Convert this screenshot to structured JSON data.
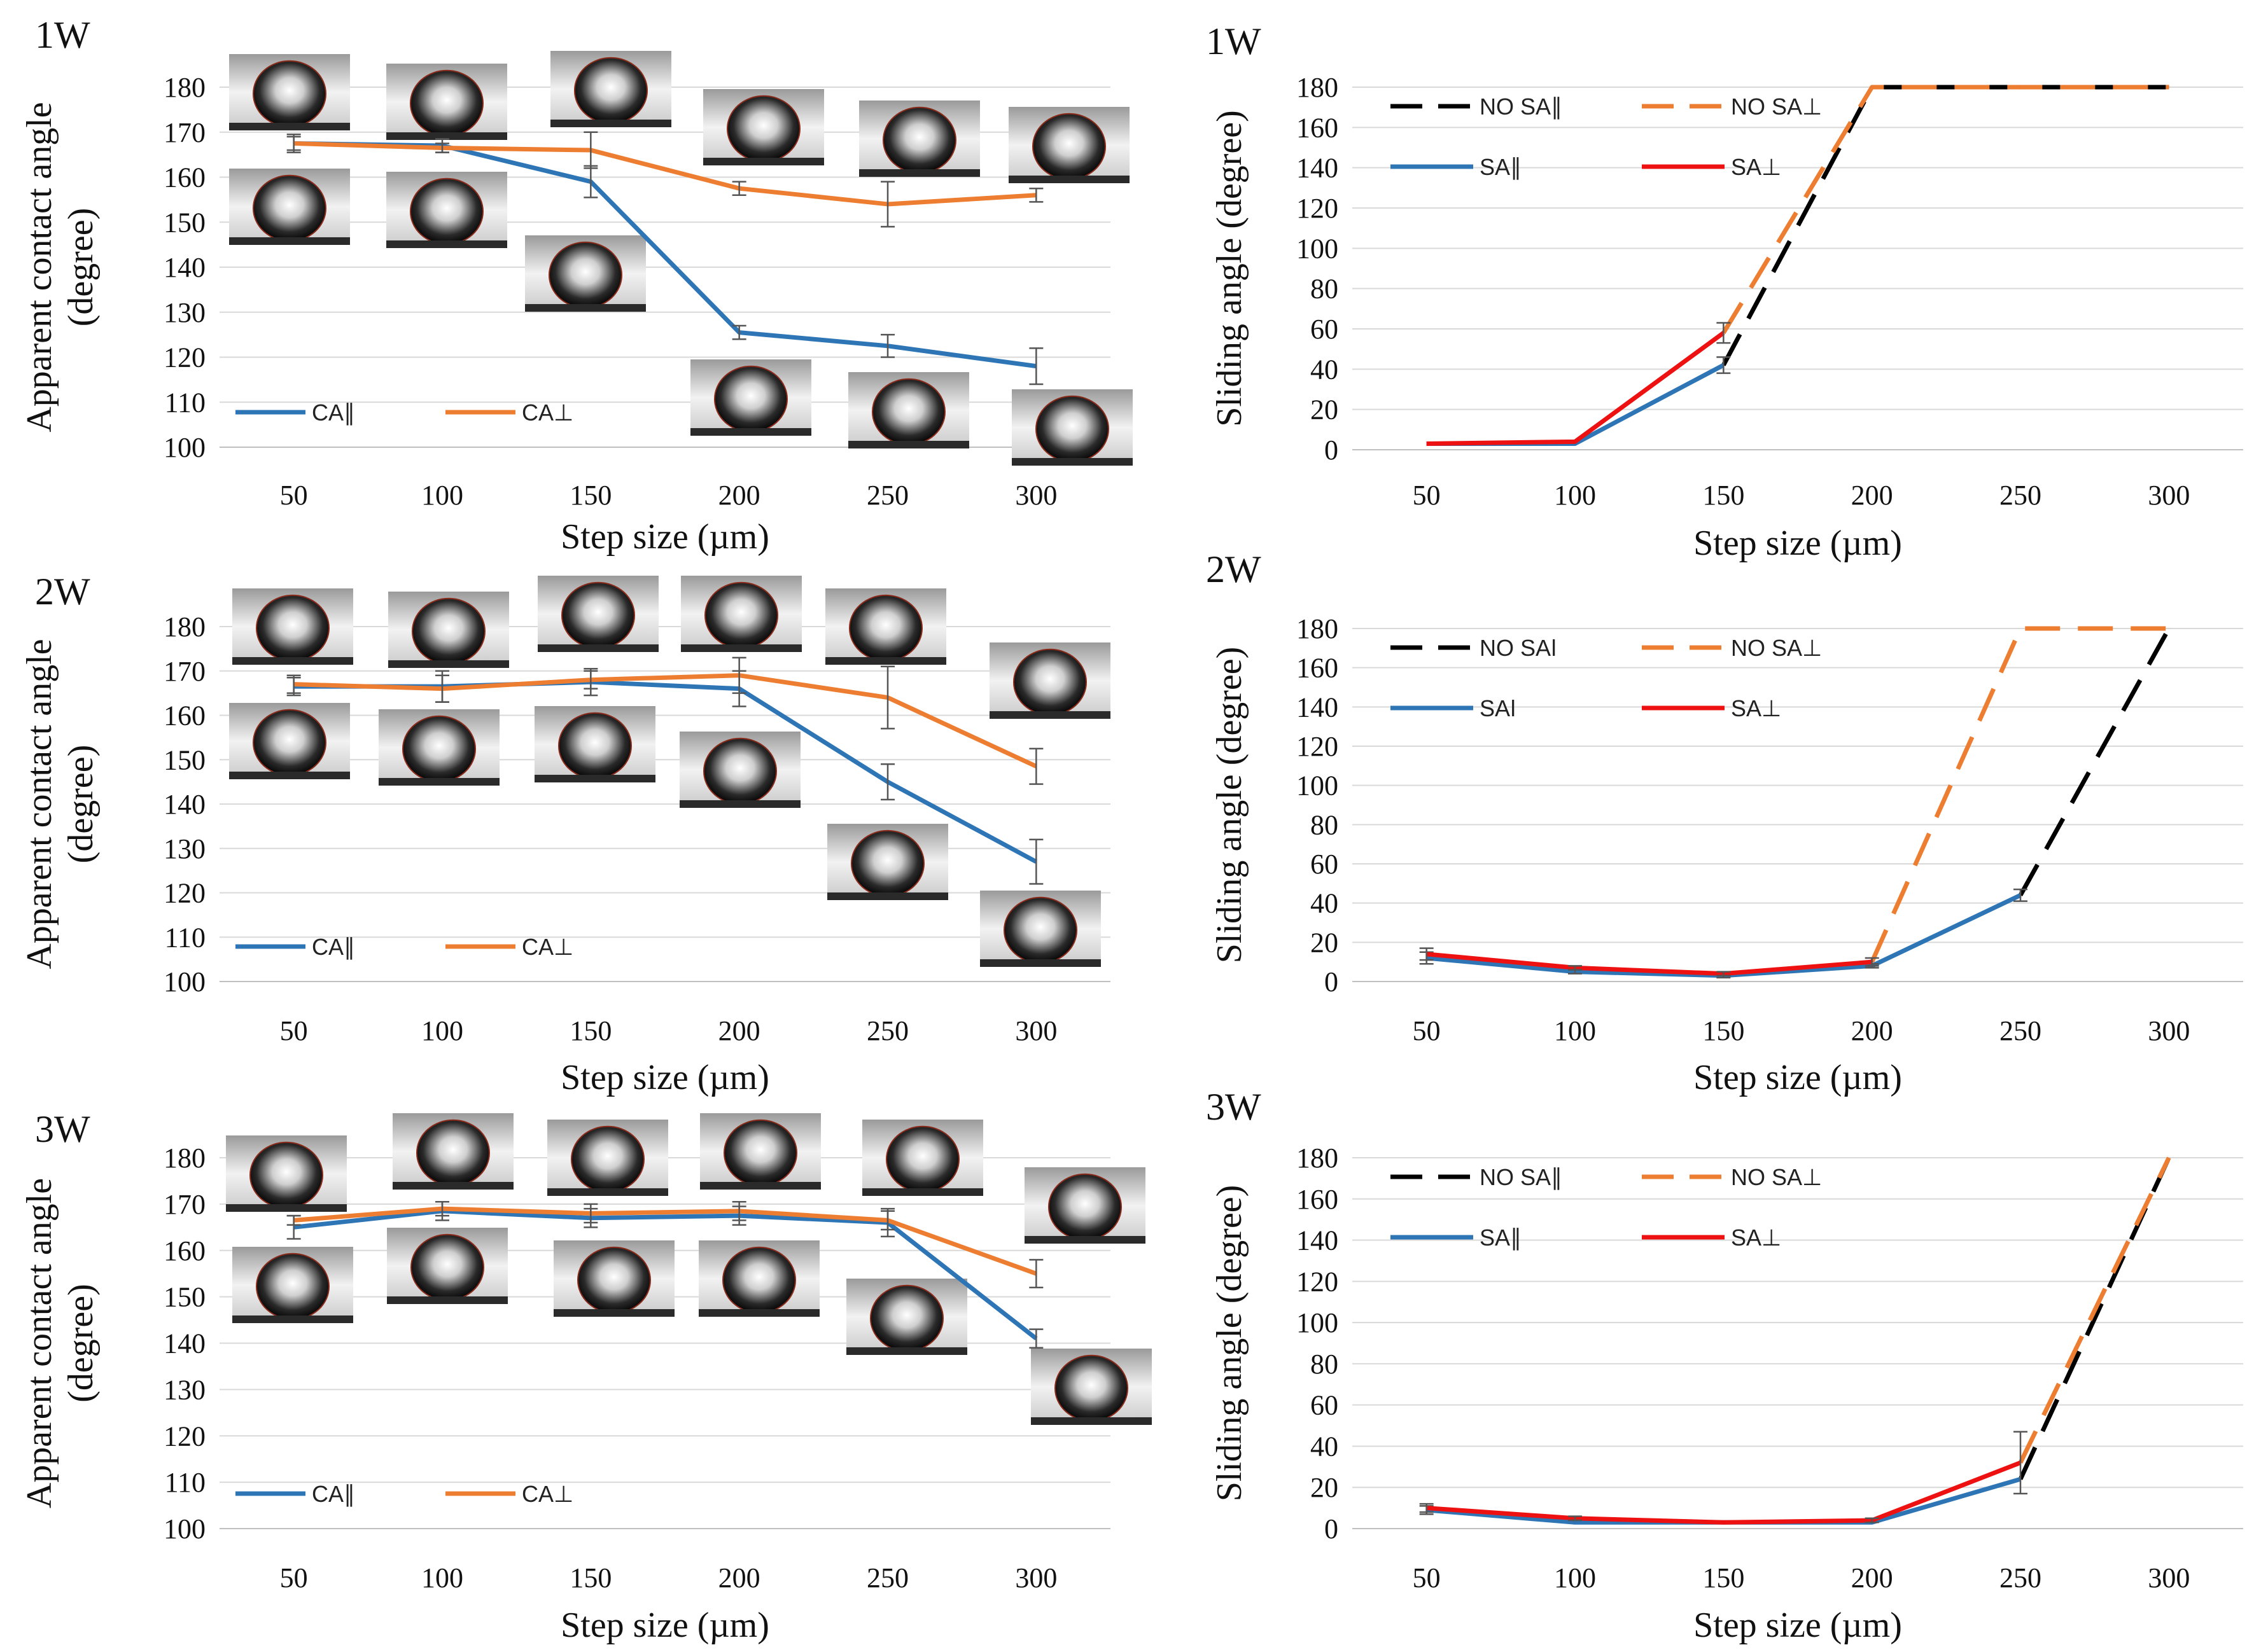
{
  "colors": {
    "blue": "#2e75b6",
    "orange": "#ed7d31",
    "red": "#ee1111",
    "black": "#000000",
    "grid": "#d9d9d9",
    "errbar": "#555555"
  },
  "chart_data": [
    {
      "id": "ca-1w",
      "type": "line",
      "panel_label": "1W",
      "xlabel": "Step size (µm)",
      "ylabel_line1": "Apparent contact angle",
      "ylabel_line2": "(degree)",
      "categories": [
        "50",
        "100",
        "150",
        "200",
        "250",
        "300"
      ],
      "ylim": [
        100,
        180
      ],
      "yticks": [
        100,
        110,
        120,
        130,
        140,
        150,
        160,
        170,
        180
      ],
      "legend": "bottom-left",
      "series": [
        {
          "name": "CA∥",
          "color": "blue",
          "values": [
            167.5,
            167,
            159,
            125.5,
            122.5,
            118
          ],
          "errors": [
            2,
            1.5,
            3.5,
            1.5,
            2.5,
            4
          ]
        },
        {
          "name": "CA⊥",
          "color": "orange",
          "values": [
            167.5,
            166.5,
            166,
            157.5,
            154,
            156
          ],
          "errors": [
            1.5,
            1,
            4,
            1.5,
            5,
            1.5
          ]
        }
      ],
      "droplet_images": "droplet contact-angle photographs per step size"
    },
    {
      "id": "sa-1w",
      "type": "line",
      "panel_label": "1W",
      "xlabel": "Step size (µm)",
      "ylabel": "Sliding angle (degree)",
      "categories": [
        "50",
        "100",
        "150",
        "200",
        "250",
        "300"
      ],
      "ylim": [
        0,
        180
      ],
      "yticks": [
        0,
        20,
        40,
        60,
        80,
        100,
        120,
        140,
        160,
        180
      ],
      "legend": "top",
      "series": [
        {
          "name": "NO SA∥",
          "color": "black",
          "dashed": true,
          "values": [
            null,
            null,
            42,
            180,
            180,
            180
          ]
        },
        {
          "name": "NO SA⊥",
          "color": "orange",
          "dashed": true,
          "values": [
            null,
            null,
            58,
            180,
            180,
            180
          ]
        },
        {
          "name": "SA∥",
          "color": "blue",
          "values": [
            3,
            3,
            42,
            null,
            null,
            null
          ],
          "errors": [
            0,
            0,
            4,
            null,
            null,
            null
          ]
        },
        {
          "name": "SA⊥",
          "color": "red",
          "values": [
            3,
            4,
            58,
            null,
            null,
            null
          ],
          "errors": [
            0,
            0,
            5,
            null,
            null,
            null
          ]
        }
      ]
    },
    {
      "id": "ca-2w",
      "type": "line",
      "panel_label": "2W",
      "xlabel": "Step size (µm)",
      "ylabel_line1": "Apparent contact angle",
      "ylabel_line2": "(degree)",
      "categories": [
        "50",
        "100",
        "150",
        "200",
        "250",
        "300"
      ],
      "ylim": [
        100,
        180
      ],
      "yticks": [
        100,
        110,
        120,
        130,
        140,
        150,
        160,
        170,
        180
      ],
      "legend": "bottom-left",
      "series": [
        {
          "name": "CA∥",
          "color": "blue",
          "values": [
            166.5,
            166.5,
            167.5,
            166,
            145,
            127
          ],
          "errors": [
            2,
            3.5,
            3,
            4,
            4,
            5
          ]
        },
        {
          "name": "CA⊥",
          "color": "orange",
          "values": [
            167,
            166,
            168,
            169,
            164,
            148.5
          ],
          "errors": [
            2,
            3,
            2,
            4,
            7,
            4
          ]
        }
      ],
      "droplet_images": "droplet contact-angle photographs per step size"
    },
    {
      "id": "sa-2w",
      "type": "line",
      "panel_label": "2W",
      "xlabel": "Step size (µm)",
      "ylabel": "Sliding angle (degree)",
      "categories": [
        "50",
        "100",
        "150",
        "200",
        "250",
        "300"
      ],
      "ylim": [
        0,
        180
      ],
      "yticks": [
        0,
        20,
        40,
        60,
        80,
        100,
        120,
        140,
        160,
        180
      ],
      "legend": "top",
      "series": [
        {
          "name": "NO SAǀ",
          "color": "black",
          "dashed": true,
          "values": [
            null,
            null,
            null,
            null,
            44,
            180
          ]
        },
        {
          "name": "NO SA⊥",
          "color": "orange",
          "dashed": true,
          "values": [
            null,
            null,
            null,
            10,
            180,
            180
          ]
        },
        {
          "name": "SAǀ",
          "color": "blue",
          "values": [
            12,
            5,
            3,
            8,
            44,
            null
          ],
          "errors": [
            3,
            1,
            1,
            1,
            3,
            null
          ]
        },
        {
          "name": "SA⊥",
          "color": "red",
          "values": [
            14,
            7,
            4,
            10,
            null,
            null
          ],
          "errors": [
            3,
            1,
            1,
            2,
            null,
            null
          ]
        }
      ]
    },
    {
      "id": "ca-3w",
      "type": "line",
      "panel_label": "3W",
      "xlabel": "Step size (µm)",
      "ylabel_line1": "Apparent contact angle",
      "ylabel_line2": "(degree)",
      "categories": [
        "50",
        "100",
        "150",
        "200",
        "250",
        "300"
      ],
      "ylim": [
        100,
        180
      ],
      "yticks": [
        100,
        110,
        120,
        130,
        140,
        150,
        160,
        170,
        180
      ],
      "legend": "bottom-left",
      "series": [
        {
          "name": "CA∥",
          "color": "blue",
          "values": [
            165,
            168.5,
            167,
            167.5,
            166,
            141
          ],
          "errors": [
            2.5,
            2,
            2,
            2,
            3,
            2
          ]
        },
        {
          "name": "CA⊥",
          "color": "orange",
          "values": [
            166.5,
            169,
            168,
            168.5,
            166.5,
            155
          ],
          "errors": [
            1,
            1.5,
            2,
            2,
            2,
            3
          ]
        }
      ],
      "droplet_images": "droplet contact-angle photographs per step size"
    },
    {
      "id": "sa-3w",
      "type": "line",
      "panel_label": "3W",
      "xlabel": "Step size (µm)",
      "ylabel": "Sliding angle (degree)",
      "categories": [
        "50",
        "100",
        "150",
        "200",
        "250",
        "300"
      ],
      "ylim": [
        0,
        180
      ],
      "yticks": [
        0,
        20,
        40,
        60,
        80,
        100,
        120,
        140,
        160,
        180
      ],
      "legend": "top",
      "series": [
        {
          "name": "NO SA∥",
          "color": "black",
          "dashed": true,
          "values": [
            null,
            null,
            null,
            null,
            24,
            180
          ]
        },
        {
          "name": "NO SA⊥",
          "color": "orange",
          "dashed": true,
          "values": [
            null,
            null,
            null,
            null,
            32,
            180
          ]
        },
        {
          "name": "SA∥",
          "color": "blue",
          "values": [
            9,
            3,
            3,
            3,
            24,
            null
          ],
          "errors": [
            2,
            0,
            0,
            0,
            0,
            null
          ]
        },
        {
          "name": "SA⊥",
          "color": "red",
          "values": [
            10,
            5,
            3,
            4,
            32,
            null
          ],
          "errors": [
            2,
            1,
            0,
            1,
            15,
            null
          ]
        }
      ]
    }
  ]
}
